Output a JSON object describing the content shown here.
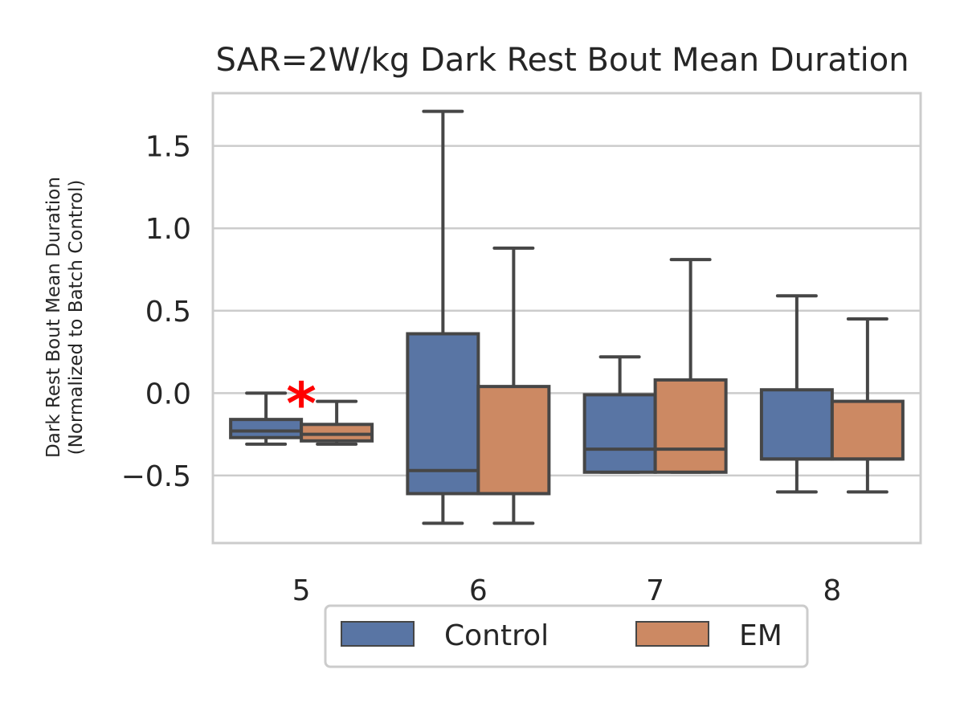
{
  "chart_data": {
    "type": "box",
    "title": "SAR=2W/kg Dark Rest Bout Mean Duration",
    "ylabel_line1": "Dark Rest Bout Mean Duration",
    "ylabel_line2": "(Normalized to Batch Control)",
    "xlabel": "",
    "ylim": [
      -0.91,
      1.82
    ],
    "yticks": [
      -0.5,
      0.0,
      0.5,
      1.0,
      1.5
    ],
    "ytick_labels": [
      "−0.5",
      "0.0",
      "0.5",
      "1.0",
      "1.5"
    ],
    "categories": [
      "5",
      "6",
      "7",
      "8"
    ],
    "grid": "horizontal",
    "legend_position": "bottom-center",
    "series": [
      {
        "name": "Control",
        "color": "#5975a4",
        "boxes": [
          {
            "whislo": -0.31,
            "q1": -0.27,
            "med": -0.23,
            "q3": -0.16,
            "whishi": 0.0
          },
          {
            "whislo": -0.79,
            "q1": -0.61,
            "med": -0.47,
            "q3": 0.36,
            "whishi": 1.71
          },
          {
            "whislo": -0.48,
            "q1": -0.48,
            "med": -0.34,
            "q3": -0.01,
            "whishi": 0.22
          },
          {
            "whislo": -0.6,
            "q1": -0.4,
            "med": -0.4,
            "q3": 0.02,
            "whishi": 0.59
          }
        ]
      },
      {
        "name": "EM",
        "color": "#cc8963",
        "boxes": [
          {
            "whislo": -0.31,
            "q1": -0.29,
            "med": -0.25,
            "q3": -0.19,
            "whishi": -0.05
          },
          {
            "whislo": -0.79,
            "q1": -0.61,
            "med": -0.61,
            "q3": 0.04,
            "whishi": 0.88
          },
          {
            "whislo": -0.48,
            "q1": -0.48,
            "med": -0.34,
            "q3": 0.08,
            "whishi": 0.81
          },
          {
            "whislo": -0.6,
            "q1": -0.4,
            "med": -0.4,
            "q3": -0.05,
            "whishi": 0.45
          }
        ]
      }
    ],
    "annotations": [
      {
        "text": "*",
        "category": "5",
        "y": 0.0,
        "color": "#ff0000"
      }
    ]
  }
}
